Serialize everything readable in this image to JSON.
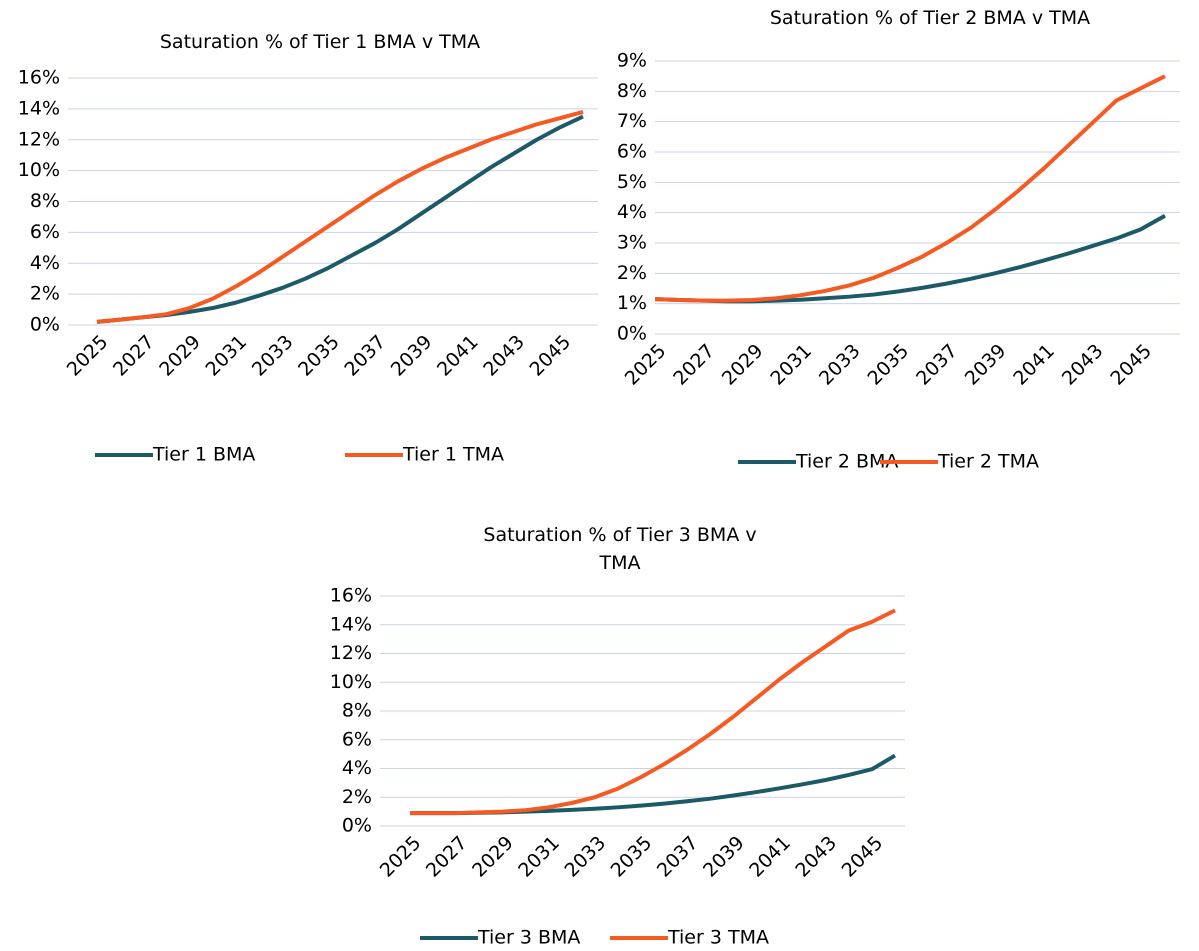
{
  "chart_data": [
    {
      "type": "line",
      "title": "Saturation % of Tier 1 BMA v TMA",
      "categories": [
        "2025",
        null,
        "2027",
        null,
        "2029",
        null,
        "2031",
        null,
        "2033",
        null,
        "2035",
        null,
        "2037",
        null,
        "2039",
        null,
        "2041",
        null,
        "2043",
        null,
        "2045",
        null
      ],
      "series": [
        {
          "name": "Tier 1 BMA",
          "color": "#1b5a66",
          "values": [
            0.2,
            0.35,
            0.5,
            0.65,
            0.85,
            1.1,
            1.45,
            1.9,
            2.4,
            3.0,
            3.7,
            4.5,
            5.3,
            6.2,
            7.2,
            8.2,
            9.2,
            10.2,
            11.1,
            12.0,
            12.8,
            13.5
          ]
        },
        {
          "name": "Tier 1 TMA",
          "color": "#f55a22",
          "values": [
            0.2,
            0.35,
            0.5,
            0.7,
            1.1,
            1.7,
            2.5,
            3.4,
            4.4,
            5.4,
            6.4,
            7.4,
            8.4,
            9.3,
            10.1,
            10.8,
            11.4,
            12.0,
            12.5,
            13.0,
            13.4,
            13.8
          ]
        }
      ],
      "ylim": [
        0,
        16
      ],
      "yticks": [
        {
          "value": 0,
          "label": "0%"
        },
        {
          "value": 2,
          "label": "2%"
        },
        {
          "value": 4,
          "label": "4%"
        },
        {
          "value": 6,
          "label": "6%"
        },
        {
          "value": 8,
          "label": "8%"
        },
        {
          "value": 10,
          "label": "10%"
        },
        {
          "value": 12,
          "label": "12%"
        },
        {
          "value": 14,
          "label": "14%"
        },
        {
          "value": 16,
          "label": "16%"
        }
      ],
      "grid": true
    },
    {
      "type": "line",
      "title": "Saturation % of Tier 2 BMA v TMA",
      "categories": [
        "2025",
        null,
        "2027",
        null,
        "2029",
        null,
        "2031",
        null,
        "2033",
        null,
        "2035",
        null,
        "2037",
        null,
        "2039",
        null,
        "2041",
        null,
        "2043",
        null,
        "2045",
        null
      ],
      "series": [
        {
          "name": "Tier 2 BMA",
          "color": "#1b5a66",
          "values": [
            1.15,
            1.12,
            1.1,
            1.08,
            1.08,
            1.1,
            1.13,
            1.18,
            1.23,
            1.3,
            1.4,
            1.52,
            1.66,
            1.82,
            2.0,
            2.2,
            2.42,
            2.65,
            2.9,
            3.15,
            3.45,
            3.9
          ]
        },
        {
          "name": "Tier 2 TMA",
          "color": "#f55a22",
          "values": [
            1.15,
            1.12,
            1.1,
            1.1,
            1.12,
            1.18,
            1.28,
            1.42,
            1.6,
            1.85,
            2.18,
            2.55,
            3.0,
            3.5,
            4.1,
            4.75,
            5.45,
            6.2,
            6.95,
            7.7,
            8.1,
            8.5
          ]
        }
      ],
      "ylim": [
        0,
        9
      ],
      "yticks": [
        {
          "value": 0,
          "label": "0%"
        },
        {
          "value": 1,
          "label": "1%"
        },
        {
          "value": 2,
          "label": "2%"
        },
        {
          "value": 3,
          "label": "3%"
        },
        {
          "value": 4,
          "label": "4%"
        },
        {
          "value": 5,
          "label": "5%"
        },
        {
          "value": 6,
          "label": "6%"
        },
        {
          "value": 7,
          "label": "7%"
        },
        {
          "value": 8,
          "label": "8%"
        },
        {
          "value": 9,
          "label": "9%"
        }
      ],
      "grid": true
    },
    {
      "type": "line",
      "title": "Saturation % of Tier 3 BMA v TMA",
      "categories": [
        "2025",
        null,
        "2027",
        null,
        "2029",
        null,
        "2031",
        null,
        "2033",
        null,
        "2035",
        null,
        "2037",
        null,
        "2039",
        null,
        "2041",
        null,
        "2043",
        null,
        "2045",
        null
      ],
      "series": [
        {
          "name": "Tier 3 BMA",
          "color": "#1b5a66",
          "values": [
            0.9,
            0.9,
            0.9,
            0.92,
            0.95,
            1.0,
            1.05,
            1.12,
            1.2,
            1.3,
            1.42,
            1.56,
            1.72,
            1.9,
            2.12,
            2.36,
            2.62,
            2.9,
            3.2,
            3.55,
            3.95,
            4.9
          ]
        },
        {
          "name": "Tier 3 TMA",
          "color": "#f55a22",
          "values": [
            0.9,
            0.9,
            0.9,
            0.95,
            1.0,
            1.1,
            1.3,
            1.6,
            2.0,
            2.6,
            3.4,
            4.3,
            5.3,
            6.4,
            7.6,
            8.9,
            10.2,
            11.4,
            12.5,
            13.6,
            14.2,
            15.0
          ]
        }
      ],
      "ylim": [
        0,
        16
      ],
      "yticks": [
        {
          "value": 0,
          "label": "0%"
        },
        {
          "value": 2,
          "label": "2%"
        },
        {
          "value": 4,
          "label": "4%"
        },
        {
          "value": 6,
          "label": "6%"
        },
        {
          "value": 8,
          "label": "8%"
        },
        {
          "value": 10,
          "label": "10%"
        },
        {
          "value": 12,
          "label": "12%"
        },
        {
          "value": 14,
          "label": "14%"
        },
        {
          "value": 16,
          "label": "16%"
        }
      ],
      "grid": true
    }
  ]
}
